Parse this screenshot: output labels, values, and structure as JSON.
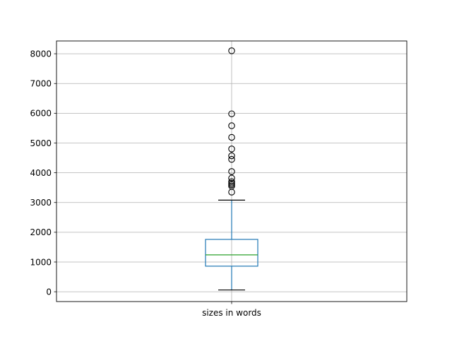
{
  "chart_data": {
    "type": "box",
    "category": "sizes in words",
    "y_ticks": [
      0,
      1000,
      2000,
      3000,
      4000,
      5000,
      6000,
      7000,
      8000
    ],
    "ylim": [
      -330,
      8430
    ],
    "grid": true,
    "box": {
      "whisker_low": 60,
      "q1": 860,
      "median": 1240,
      "q3": 1760,
      "whisker_high": 3080
    },
    "outliers": [
      3350,
      3550,
      3600,
      3650,
      3700,
      3820,
      4040,
      4450,
      4570,
      4800,
      5190,
      5580,
      5980,
      8100
    ],
    "colors": {
      "box": "#1f77b4",
      "median": "#2ca02c",
      "whisker": "#1f77b4",
      "cap": "#000000",
      "outlier_edge": "#000000",
      "grid": "#b0b0b0"
    }
  }
}
